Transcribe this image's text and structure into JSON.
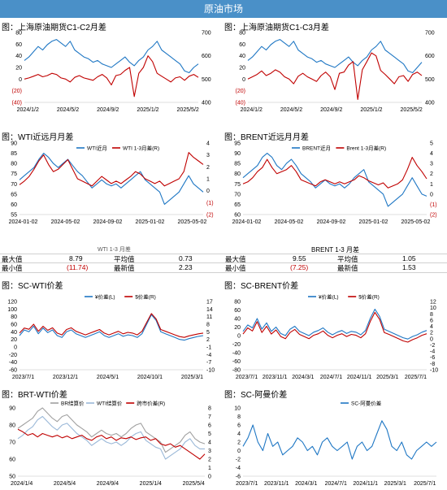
{
  "banner": "原油市场",
  "panels": {
    "p1": {
      "title": "图：上海原油期货C1-C2月差"
    },
    "p2": {
      "title": "图：上海原油期货C1-C3月差"
    },
    "p3": {
      "title": "图：WTI近远月月差"
    },
    "p4": {
      "title": "图：BRENT近远月月差"
    },
    "p5": {
      "title": "图：SC-WTI价差"
    },
    "p6": {
      "title": "图：SC-BRENT价差"
    },
    "p7": {
      "title": "图：BRT-WTI价差"
    },
    "p8": {
      "title": "图：SC-阿曼价差"
    }
  },
  "stats_wti": {
    "header": "WTI 1-3 月差",
    "rows": [
      {
        "label": "最大值",
        "v1": "8.79",
        "label2": "平均值",
        "v2": "0.73"
      },
      {
        "label": "最小值",
        "v1": "(11.74)",
        "label2": "最新值",
        "v2": "2.23"
      }
    ]
  },
  "stats_brent": {
    "header": "BRENT 1-3 月差",
    "rows": [
      {
        "label": "最大值",
        "v1": "9.55",
        "label2": "平均值",
        "v2": "1.05"
      },
      {
        "label": "最小值",
        "v1": "(7.25)",
        "label2": "最新值",
        "v2": "1.53"
      }
    ]
  },
  "colors": {
    "blue": "#1f77c4",
    "red": "#c00000",
    "grey": "#a0a0a0",
    "lightblue": "#9ab8d8",
    "banner": "#4a90c8"
  },
  "chart_data": [
    {
      "id": "p1",
      "type": "line",
      "xticks": [
        "2024/1/2",
        "2024/5/2",
        "2024/9/2",
        "2025/1/2",
        "2025/5/2"
      ],
      "yticks_left": [
        "80",
        "60",
        "40",
        "20",
        "0",
        "(20)",
        "(40)"
      ],
      "ylim_left": [
        -40,
        80
      ],
      "yticks_right": [
        "700",
        "600",
        "500",
        "400"
      ],
      "ylim_right": [
        300,
        700
      ],
      "series": [
        {
          "color": "blue",
          "axis": "right",
          "values": [
            540,
            560,
            590,
            620,
            600,
            630,
            650,
            660,
            640,
            620,
            650,
            600,
            580,
            560,
            550,
            530,
            540,
            520,
            510,
            500,
            520,
            540,
            560,
            530,
            510,
            540,
            560,
            600,
            620,
            650,
            600,
            580,
            560,
            540,
            520,
            480,
            470,
            500,
            520
          ]
        },
        {
          "color": "red",
          "axis": "left",
          "values": [
            0,
            2,
            5,
            8,
            4,
            6,
            10,
            8,
            2,
            0,
            -5,
            3,
            6,
            2,
            0,
            -2,
            4,
            8,
            2,
            -10,
            6,
            8,
            15,
            20,
            -30,
            10,
            20,
            40,
            30,
            10,
            5,
            0,
            -5,
            2,
            4,
            -2,
            5,
            8,
            3
          ]
        }
      ]
    },
    {
      "id": "p2",
      "type": "line",
      "xticks": [
        "2024/1/2",
        "2024/5/2",
        "2024/9/2",
        "2025/1/2",
        "2025/5/2"
      ],
      "yticks_left": [
        "80",
        "60",
        "40",
        "20",
        "0",
        "(20)",
        "(40)"
      ],
      "ylim_left": [
        -40,
        80
      ],
      "yticks_right": [
        "700",
        "600",
        "500",
        "400"
      ],
      "ylim_right": [
        300,
        700
      ],
      "series": [
        {
          "color": "blue",
          "axis": "right",
          "values": [
            540,
            560,
            590,
            620,
            600,
            630,
            650,
            660,
            640,
            620,
            650,
            600,
            580,
            560,
            550,
            530,
            540,
            520,
            510,
            500,
            520,
            540,
            560,
            530,
            510,
            540,
            560,
            600,
            620,
            650,
            600,
            580,
            560,
            540,
            520,
            480,
            470,
            500,
            530
          ]
        },
        {
          "color": "red",
          "axis": "left",
          "values": [
            0,
            4,
            8,
            14,
            6,
            10,
            16,
            12,
            4,
            0,
            -8,
            5,
            10,
            4,
            0,
            -4,
            6,
            12,
            4,
            -18,
            10,
            12,
            24,
            30,
            -35,
            16,
            30,
            45,
            40,
            15,
            8,
            0,
            -8,
            4,
            6,
            -4,
            8,
            12,
            6
          ]
        }
      ]
    },
    {
      "id": "p3",
      "type": "line",
      "legend": [
        "WTI近月",
        "WTI 1-3月差(R)"
      ],
      "xticks": [
        "2024-01-02",
        "2024-05-02",
        "2024-09-02",
        "2025-01-02",
        "2025-05-02"
      ],
      "yticks_left": [
        "90",
        "85",
        "80",
        "75",
        "70",
        "65",
        "60",
        "55"
      ],
      "ylim_left": [
        55,
        90
      ],
      "yticks_right": [
        "4",
        "3",
        "2",
        "1",
        "0",
        "(1)",
        "(2)"
      ],
      "ylim_right": [
        -2,
        4
      ],
      "series": [
        {
          "name": "WTI近月",
          "color": "blue",
          "axis": "left",
          "values": [
            72,
            74,
            76,
            78,
            82,
            85,
            83,
            80,
            78,
            80,
            82,
            79,
            76,
            74,
            71,
            68,
            70,
            72,
            70,
            69,
            70,
            68,
            70,
            72,
            74,
            76,
            72,
            70,
            68,
            66,
            60,
            62,
            64,
            66,
            70,
            74,
            70,
            68,
            66
          ]
        },
        {
          "name": "WTI 1-3月差(R)",
          "color": "red",
          "axis": "right",
          "values": [
            0.5,
            0.8,
            1.2,
            1.8,
            2.5,
            3.0,
            2.2,
            1.6,
            1.8,
            2.2,
            2.6,
            1.8,
            1.0,
            0.8,
            0.6,
            0.4,
            0.8,
            1.2,
            0.9,
            0.6,
            0.8,
            0.6,
            0.9,
            1.2,
            1.6,
            1.4,
            1.0,
            0.8,
            0.6,
            0.8,
            0.4,
            0.6,
            0.8,
            1.0,
            1.6,
            3.2,
            2.8,
            2.5,
            2.2
          ]
        }
      ]
    },
    {
      "id": "p4",
      "type": "line",
      "legend": [
        "BRENT近月",
        "Brent 1-3月差(R)"
      ],
      "xticks": [
        "2024-01-02",
        "2024-05-02",
        "2024-09-02",
        "2025-01-02",
        "2025-05-02"
      ],
      "yticks_left": [
        "95",
        "90",
        "85",
        "80",
        "75",
        "70",
        "65",
        "60"
      ],
      "ylim_left": [
        60,
        95
      ],
      "yticks_right": [
        "5",
        "4",
        "3",
        "2",
        "1",
        "0",
        "(1)",
        "(2)"
      ],
      "ylim_right": [
        -2,
        5
      ],
      "series": [
        {
          "name": "BRENT近月",
          "color": "blue",
          "axis": "left",
          "values": [
            78,
            80,
            82,
            84,
            88,
            90,
            88,
            84,
            82,
            85,
            87,
            84,
            80,
            78,
            76,
            73,
            75,
            77,
            75,
            74,
            75,
            73,
            75,
            78,
            80,
            82,
            76,
            74,
            72,
            70,
            64,
            66,
            68,
            70,
            74,
            78,
            74,
            70,
            69
          ]
        },
        {
          "name": "Brent 1-3月差(R)",
          "color": "red",
          "axis": "right",
          "values": [
            1.0,
            1.2,
            1.6,
            2.2,
            2.6,
            3.4,
            2.6,
            2.0,
            2.2,
            2.4,
            2.8,
            2.2,
            1.4,
            1.2,
            1.0,
            0.8,
            1.2,
            1.4,
            1.2,
            1.0,
            1.2,
            1.0,
            1.2,
            1.4,
            1.8,
            1.6,
            1.3,
            1.1,
            0.9,
            1.1,
            0.6,
            0.8,
            1.0,
            1.4,
            2.4,
            3.6,
            2.8,
            2.2,
            1.5
          ]
        }
      ]
    },
    {
      "id": "p5",
      "type": "line",
      "legend": [
        "¥价差(L)",
        "$价差(R)"
      ],
      "xticks": [
        "2023/7/1",
        "2023/12/1",
        "2024/5/1",
        "2024/10/1",
        "2025/3/1"
      ],
      "yticks_left": [
        "120",
        "100",
        "80",
        "60",
        "40",
        "20",
        "0",
        "-20",
        "-40",
        "-60"
      ],
      "ylim_left": [
        -60,
        120
      ],
      "yticks_right": [
        "17",
        "14",
        "11",
        "8",
        "5",
        "2",
        "-1",
        "-4",
        "-7",
        "-10"
      ],
      "ylim_right": [
        -10,
        17
      ],
      "series": [
        {
          "name": "¥价差(L)",
          "color": "blue",
          "axis": "left",
          "values": [
            30,
            45,
            40,
            55,
            35,
            50,
            38,
            45,
            30,
            25,
            40,
            45,
            35,
            30,
            25,
            30,
            35,
            40,
            30,
            25,
            30,
            35,
            28,
            32,
            30,
            25,
            35,
            60,
            85,
            70,
            40,
            35,
            30,
            25,
            20,
            18,
            22,
            25,
            28,
            30
          ]
        },
        {
          "name": "$价差(R)",
          "color": "red",
          "axis": "right",
          "values": [
            4.5,
            6.5,
            6.0,
            8.0,
            5.2,
            7.2,
            5.6,
            6.6,
            4.5,
            3.8,
            5.9,
            6.6,
            5.2,
            4.5,
            3.8,
            4.5,
            5.2,
            5.9,
            4.5,
            3.8,
            4.5,
            5.2,
            4.2,
            4.8,
            4.5,
            3.8,
            5.2,
            8.7,
            12.2,
            10.1,
            5.9,
            5.2,
            4.5,
            3.8,
            3.1,
            2.8,
            3.4,
            3.8,
            4.2,
            4.5
          ]
        }
      ]
    },
    {
      "id": "p6",
      "type": "line",
      "legend": [
        "¥价差(L)",
        "$价差(R)"
      ],
      "xticks": [
        "2023/7/1",
        "2023/11/1",
        "2024/3/1",
        "2024/7/1",
        "2024/11/1",
        "2025/3/1",
        "2025/7/1"
      ],
      "yticks_left": [
        "80",
        "60",
        "40",
        "20",
        "0",
        "-20",
        "-40",
        "-60",
        "-80"
      ],
      "ylim_left": [
        -80,
        80
      ],
      "yticks_right": [
        "12",
        "10",
        "8",
        "6",
        "4",
        "2",
        "0",
        "-2",
        "-4",
        "-6",
        "-8",
        "-10"
      ],
      "ylim_right": [
        -10,
        12
      ],
      "series": [
        {
          "name": "¥价差(L)",
          "color": "blue",
          "axis": "left",
          "values": [
            10,
            25,
            18,
            40,
            15,
            30,
            10,
            20,
            5,
            0,
            15,
            22,
            10,
            5,
            0,
            8,
            12,
            18,
            8,
            2,
            8,
            12,
            5,
            10,
            8,
            2,
            12,
            40,
            62,
            45,
            15,
            10,
            5,
            0,
            -5,
            -8,
            -2,
            2,
            8,
            12
          ]
        },
        {
          "name": "$价差(R)",
          "color": "red",
          "axis": "right",
          "values": [
            1.5,
            3.5,
            2.5,
            5.5,
            2.0,
            4.0,
            1.5,
            2.8,
            0.7,
            0.0,
            2.0,
            3.0,
            1.4,
            0.7,
            0.0,
            1.1,
            1.6,
            2.5,
            1.1,
            0.3,
            1.1,
            1.6,
            0.7,
            1.4,
            1.1,
            0.3,
            1.6,
            5.5,
            8.5,
            6.2,
            2.0,
            1.4,
            0.7,
            0.0,
            -0.7,
            -1.1,
            -0.3,
            0.3,
            1.1,
            1.6
          ]
        }
      ]
    },
    {
      "id": "p7",
      "type": "line",
      "legend": [
        "BR结算价",
        "WTI结算价",
        "跨市价差(R)"
      ],
      "xticks": [
        "2024/1/4",
        "2024/5/4",
        "2024/9/4",
        "2025/1/4",
        "2025/5/4"
      ],
      "yticks_left": [
        "90",
        "80",
        "70",
        "60",
        "50"
      ],
      "ylim_left": [
        50,
        90
      ],
      "yticks_right": [
        "8",
        "7",
        "6",
        "5",
        "4",
        "3",
        "2",
        "1",
        "0"
      ],
      "ylim_right": [
        0,
        8
      ],
      "series": [
        {
          "name": "BR结算价",
          "color": "grey",
          "axis": "left",
          "values": [
            78,
            80,
            82,
            84,
            88,
            90,
            87,
            84,
            82,
            85,
            86,
            83,
            80,
            78,
            76,
            73,
            75,
            77,
            75,
            74,
            75,
            73,
            75,
            78,
            80,
            81,
            76,
            74,
            72,
            70,
            64,
            66,
            68,
            70,
            74,
            76,
            72,
            70,
            69
          ]
        },
        {
          "name": "WTI结算价",
          "color": "lightblue",
          "axis": "left",
          "values": [
            72,
            74,
            77,
            79,
            83,
            85,
            82,
            79,
            77,
            80,
            81,
            78,
            75,
            73,
            71,
            68,
            70,
            72,
            70,
            69,
            70,
            68,
            70,
            73,
            75,
            76,
            71,
            69,
            67,
            66,
            60,
            62,
            64,
            66,
            70,
            72,
            68,
            66,
            66
          ]
        },
        {
          "name": "跨市价差(R)",
          "color": "red",
          "axis": "right",
          "values": [
            5.5,
            5.2,
            4.8,
            5.0,
            4.6,
            5.0,
            4.8,
            4.6,
            4.8,
            4.5,
            4.7,
            4.4,
            4.6,
            4.8,
            4.4,
            4.2,
            4.6,
            4.8,
            4.4,
            4.6,
            4.2,
            4.5,
            4.4,
            4.6,
            4.3,
            4.5,
            4.6,
            4.2,
            4.4,
            3.8,
            3.6,
            3.8,
            3.4,
            3.6,
            3.2,
            2.8,
            2.4,
            2.0,
            2.6
          ]
        }
      ]
    },
    {
      "id": "p8",
      "type": "line",
      "legend": [
        "SC-阿曼价差"
      ],
      "xticks": [
        "2023/7/1",
        "2023/11/1",
        "2024/3/1",
        "2024/7/1",
        "2024/11/1",
        "2025/3/1",
        "2025/7/1"
      ],
      "yticks_left": [
        "10",
        "8",
        "6",
        "4",
        "2",
        "0",
        "-2",
        "-4",
        "-6"
      ],
      "ylim_left": [
        -6,
        10
      ],
      "series": [
        {
          "name": "SC-阿曼价差",
          "color": "blue",
          "axis": "left",
          "values": [
            1,
            3,
            6,
            2,
            0,
            4,
            1,
            2,
            -1,
            0,
            1,
            3,
            2,
            0,
            1,
            -1,
            2,
            3,
            1,
            0,
            1,
            2,
            -2,
            1,
            2,
            0,
            1,
            4,
            7,
            5,
            1,
            0,
            2,
            -1,
            -2,
            0,
            1,
            2,
            1,
            2
          ]
        }
      ]
    }
  ]
}
